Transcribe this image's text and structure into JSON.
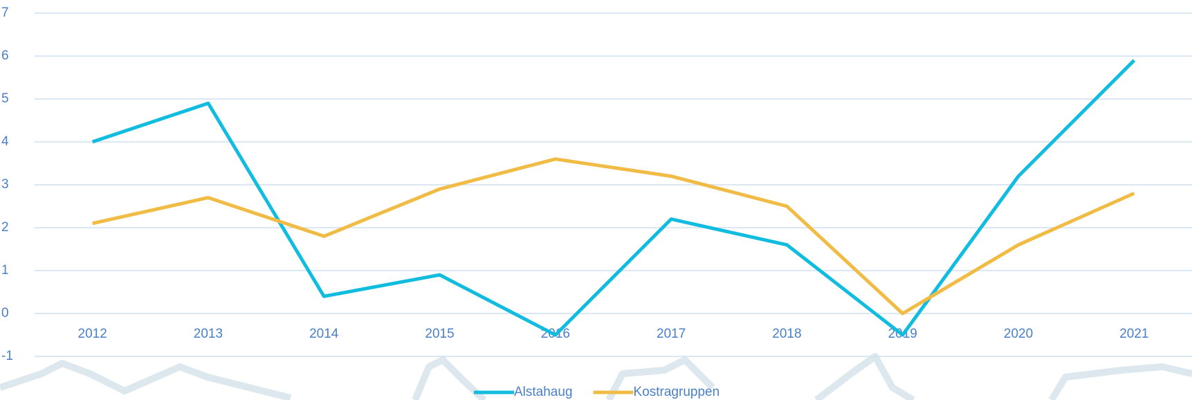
{
  "chart_data": {
    "type": "line",
    "categories": [
      "2012",
      "2013",
      "2014",
      "2015",
      "2016",
      "2017",
      "2018",
      "2019",
      "2020",
      "2021"
    ],
    "series": [
      {
        "name": "Alstahaug",
        "color": "#12bcdf",
        "values": [
          4.0,
          4.9,
          0.4,
          0.9,
          -0.5,
          2.2,
          1.6,
          -0.5,
          3.2,
          5.9
        ]
      },
      {
        "name": "Kostragruppen",
        "color": "#f0bc45",
        "values": [
          2.1,
          2.7,
          1.8,
          2.9,
          3.6,
          3.2,
          2.5,
          0.0,
          1.6,
          2.8
        ]
      }
    ],
    "ylim": [
      -1,
      7
    ],
    "yticks": [
      -1,
      0,
      1,
      2,
      3,
      4,
      5,
      6,
      7
    ],
    "grid": true,
    "legend": "bottom"
  }
}
